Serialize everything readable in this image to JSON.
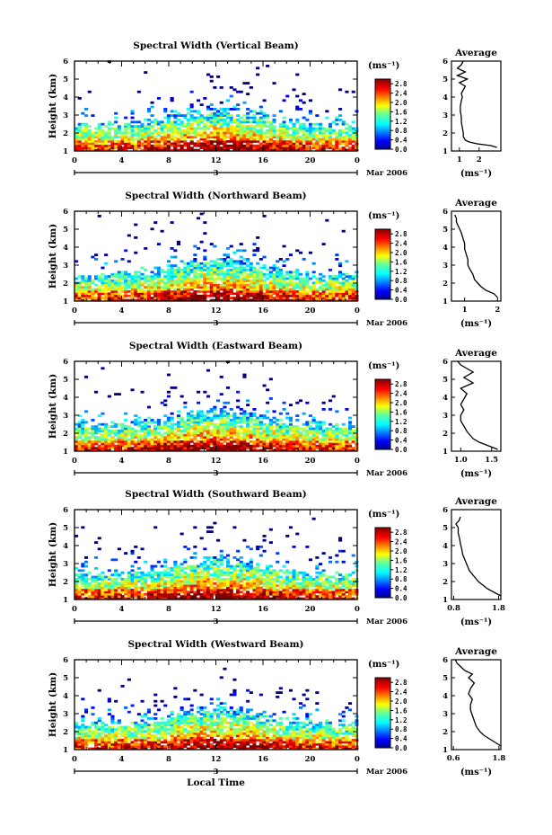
{
  "chart_data": [
    {
      "type": "heatmap",
      "title": "Spectral Width (Vertical Beam)",
      "ylabel": "Height (km)",
      "ylim": [
        1,
        6
      ],
      "yticks": [
        "1",
        "2",
        "3",
        "4",
        "5",
        "6"
      ],
      "xlim": [
        0,
        24
      ],
      "xticks": [
        "0",
        "4",
        "8",
        "12",
        "16",
        "20",
        "0"
      ],
      "day_label": "3",
      "date_label": "Mar 2006",
      "colorbar": {
        "unit": "(ms⁻¹)",
        "ticks": [
          "0.0",
          "0.4",
          "0.8",
          "1.2",
          "1.6",
          "2.0",
          "2.4",
          "2.8"
        ],
        "range": [
          0.0,
          3.0
        ]
      },
      "average_profile": {
        "title": "Average",
        "xlabel": "(ms⁻¹)",
        "xticks": [
          "1",
          "2"
        ],
        "xlim": [
          0.6,
          3.1
        ],
        "height": [
          1.2,
          1.3,
          1.4,
          1.5,
          1.6,
          1.8,
          2.0,
          2.3,
          2.6,
          2.9,
          3.2,
          3.5,
          3.8,
          4.0,
          4.2,
          4.4,
          4.6,
          4.8,
          5.0,
          5.2,
          5.4,
          5.6,
          5.8,
          6.0
        ],
        "value": [
          2.9,
          2.6,
          1.9,
          1.5,
          1.3,
          1.2,
          1.2,
          1.15,
          1.1,
          1.1,
          1.05,
          1.05,
          1.1,
          1.15,
          1.1,
          1.2,
          1.3,
          1.0,
          1.4,
          0.9,
          1.3,
          0.9,
          1.1,
          1.2
        ]
      }
    },
    {
      "type": "heatmap",
      "title": "Spectral Width (Northward Beam)",
      "ylabel": "Height (km)",
      "ylim": [
        1,
        6
      ],
      "yticks": [
        "1",
        "2",
        "3",
        "4",
        "5",
        "6"
      ],
      "xlim": [
        0,
        24
      ],
      "xticks": [
        "0",
        "4",
        "8",
        "12",
        "16",
        "20",
        "0"
      ],
      "day_label": "3",
      "date_label": "Mar 2006",
      "colorbar": {
        "unit": "(ms⁻¹)",
        "ticks": [
          "0.0",
          "0.4",
          "0.8",
          "1.2",
          "1.6",
          "2.0",
          "2.4",
          "2.8"
        ],
        "range": [
          0.0,
          3.0
        ]
      },
      "average_profile": {
        "title": "Average",
        "xlabel": "(ms⁻¹)",
        "xticks": [
          "1",
          "2"
        ],
        "xlim": [
          0.6,
          2.1
        ],
        "height": [
          1.2,
          1.4,
          1.6,
          1.8,
          2.0,
          2.2,
          2.5,
          2.8,
          3.0,
          3.3,
          3.6,
          3.9,
          4.2,
          4.5,
          4.8,
          5.0,
          5.2,
          5.4,
          5.6,
          5.8
        ],
        "value": [
          2.0,
          1.9,
          1.65,
          1.5,
          1.4,
          1.3,
          1.25,
          1.15,
          1.1,
          1.1,
          1.05,
          1.0,
          1.0,
          0.95,
          0.9,
          0.85,
          0.8,
          0.75,
          0.75,
          0.7
        ]
      }
    },
    {
      "type": "heatmap",
      "title": "Spectral Width (Eastward Beam)",
      "ylabel": "Height (km)",
      "ylim": [
        1,
        6
      ],
      "yticks": [
        "1",
        "2",
        "3",
        "4",
        "5",
        "6"
      ],
      "xlim": [
        0,
        24
      ],
      "xticks": [
        "0",
        "4",
        "8",
        "12",
        "16",
        "20",
        "0"
      ],
      "day_label": "3",
      "date_label": "Mar 2006",
      "colorbar": {
        "unit": "(ms⁻¹)",
        "ticks": [
          "0.0",
          "0.4",
          "0.8",
          "1.2",
          "1.6",
          "2.0",
          "2.4",
          "2.8"
        ],
        "range": [
          0.0,
          3.0
        ]
      },
      "average_profile": {
        "title": "Average",
        "xlabel": "(ms⁻¹)",
        "xticks": [
          "1.0",
          "1.5"
        ],
        "xlim": [
          0.85,
          1.65
        ],
        "height": [
          1.1,
          1.3,
          1.5,
          1.7,
          1.9,
          2.1,
          2.4,
          2.7,
          3.0,
          3.3,
          3.6,
          3.9,
          4.2,
          4.5,
          4.8,
          5.1,
          5.4,
          5.6,
          5.8,
          6.0
        ],
        "value": [
          1.6,
          1.45,
          1.3,
          1.2,
          1.15,
          1.1,
          1.05,
          1.0,
          1.0,
          1.05,
          1.0,
          1.05,
          1.1,
          1.0,
          1.2,
          1.05,
          1.2,
          1.1,
          1.0,
          0.95
        ]
      }
    },
    {
      "type": "heatmap",
      "title": "Spectral Width (Southward Beam)",
      "ylabel": "Height (km)",
      "ylim": [
        1,
        6
      ],
      "yticks": [
        "1",
        "2",
        "3",
        "4",
        "5",
        "6"
      ],
      "xlim": [
        0,
        24
      ],
      "xticks": [
        "0",
        "4",
        "8",
        "12",
        "16",
        "20",
        "0"
      ],
      "day_label": "3",
      "date_label": "Mar 2006",
      "colorbar": {
        "unit": "(ms⁻¹)",
        "ticks": [
          "0.0",
          "0.4",
          "0.8",
          "1.2",
          "1.6",
          "2.0",
          "2.4",
          "2.8"
        ],
        "range": [
          0.0,
          3.0
        ]
      },
      "average_profile": {
        "title": "Average",
        "xlabel": "(ms⁻¹)",
        "xticks": [
          "0.8",
          "1.8"
        ],
        "xlim": [
          0.75,
          1.85
        ],
        "height": [
          1.2,
          1.4,
          1.6,
          1.8,
          2.0,
          2.3,
          2.6,
          2.9,
          3.2,
          3.5,
          3.8,
          4.1,
          4.4,
          4.7,
          5.0,
          5.2,
          5.4,
          5.6
        ],
        "value": [
          1.85,
          1.7,
          1.55,
          1.45,
          1.35,
          1.25,
          1.15,
          1.1,
          1.05,
          1.0,
          0.98,
          0.95,
          0.93,
          0.9,
          0.9,
          0.85,
          0.92,
          0.95
        ]
      }
    },
    {
      "type": "heatmap",
      "title": "Spectral Width (Westward Beam)",
      "ylabel": "Height (km)",
      "ylim": [
        1,
        6
      ],
      "yticks": [
        "1",
        "2",
        "3",
        "4",
        "5",
        "6"
      ],
      "xlim": [
        0,
        24
      ],
      "xticks": [
        "0",
        "4",
        "8",
        "12",
        "16",
        "20",
        "0"
      ],
      "day_label": "3",
      "date_label": "Mar 2006",
      "xlabel": "Local Time",
      "colorbar": {
        "unit": "(ms⁻¹)",
        "ticks": [
          "0.0",
          "0.4",
          "0.8",
          "1.2",
          "1.6",
          "2.0",
          "2.4",
          "2.8"
        ],
        "range": [
          0.0,
          3.0
        ]
      },
      "average_profile": {
        "title": "Average",
        "xlabel": "(ms⁻¹)",
        "xticks": [
          "0.6",
          "1.8"
        ],
        "xlim": [
          0.55,
          1.85
        ],
        "height": [
          1.2,
          1.4,
          1.6,
          1.8,
          2.0,
          2.3,
          2.6,
          2.9,
          3.2,
          3.5,
          3.8,
          4.1,
          4.4,
          4.7,
          5.0,
          5.2,
          5.4,
          5.6,
          5.8,
          6.0
        ],
        "value": [
          1.85,
          1.7,
          1.55,
          1.4,
          1.3,
          1.2,
          1.15,
          1.1,
          1.05,
          1.05,
          1.1,
          1.0,
          1.05,
          1.15,
          1.0,
          1.1,
          0.9,
          0.8,
          0.7,
          0.65
        ]
      }
    }
  ]
}
